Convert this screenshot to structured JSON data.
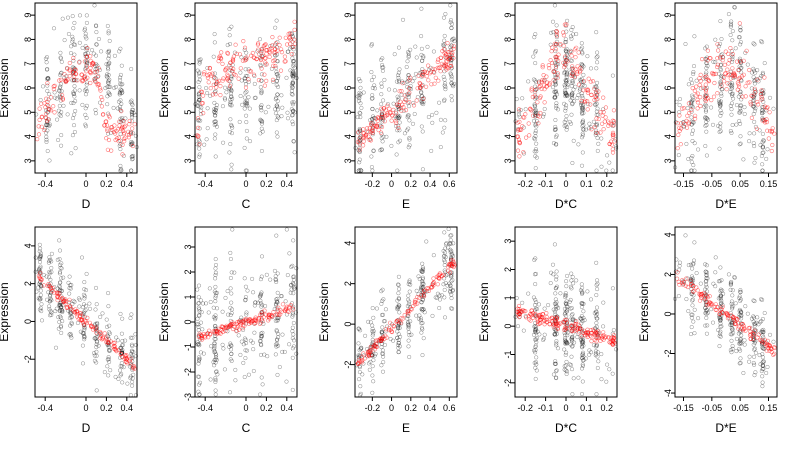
{
  "chart_data": [
    {
      "type": "scatter",
      "xlabel": "D",
      "ylabel": "Expression",
      "xlim": [
        -0.5,
        0.5
      ],
      "ylim": [
        2.5,
        9.5
      ],
      "xticks": [
        -0.4,
        0,
        0.2,
        0.4
      ],
      "yticks": [
        3,
        4,
        5,
        6,
        7,
        8,
        9
      ],
      "grey_fn": {
        "kind": "peak",
        "pts": [
          [
            -0.5,
            4.6
          ],
          [
            -0.2,
            6.3
          ],
          [
            0.1,
            7.2
          ],
          [
            0.5,
            3.8
          ]
        ],
        "sd": 1.2,
        "clusters": [
          -0.38,
          -0.25,
          -0.12,
          0.0,
          0.1,
          0.22,
          0.34,
          0.45
        ],
        "n": 300
      },
      "red_fn": {
        "kind": "peak",
        "pts": [
          [
            -0.5,
            4.4
          ],
          [
            -0.2,
            6.2
          ],
          [
            0.1,
            7.0
          ],
          [
            0.2,
            4.3
          ],
          [
            0.5,
            4.1
          ]
        ],
        "sd": 0.35,
        "n": 150
      }
    },
    {
      "type": "scatter",
      "xlabel": "C",
      "ylabel": "Expression",
      "xlim": [
        -0.5,
        0.5
      ],
      "ylim": [
        2.5,
        9.5
      ],
      "xticks": [
        -0.4,
        0,
        0.2,
        0.4
      ],
      "yticks": [
        3,
        4,
        5,
        6,
        7,
        8,
        9
      ],
      "grey_fn": {
        "kind": "linear",
        "a": 5.7,
        "b": 1.0,
        "sd": 1.3,
        "clusters": [
          -0.46,
          -0.3,
          -0.15,
          0.0,
          0.15,
          0.3,
          0.46
        ],
        "n": 300
      },
      "red_fn": {
        "kind": "peak",
        "pts": [
          [
            -0.48,
            4.0
          ],
          [
            -0.4,
            6.3
          ],
          [
            0.5,
            7.8
          ]
        ],
        "sd": 0.45,
        "n": 150
      }
    },
    {
      "type": "scatter",
      "xlabel": "E",
      "ylabel": "Expression",
      "xlim": [
        -0.38,
        0.68
      ],
      "ylim": [
        2.5,
        9.5
      ],
      "xticks": [
        -0.2,
        0,
        0.2,
        0.4,
        0.6
      ],
      "yticks": [
        3,
        4,
        5,
        6,
        7,
        8,
        9
      ],
      "grey_fn": {
        "kind": "linear",
        "a": 5.2,
        "b": 2.6,
        "sd": 1.2,
        "clusters": [
          -0.33,
          -0.2,
          -0.1,
          0.07,
          0.18,
          0.32,
          0.55,
          0.62
        ],
        "n": 300
      },
      "red_fn": {
        "kind": "linear",
        "a": 5.0,
        "b": 3.6,
        "sd": 0.3,
        "n": 150
      }
    },
    {
      "type": "scatter",
      "xlabel": "D*C",
      "ylabel": "Expression",
      "xlim": [
        -0.25,
        0.25
      ],
      "ylim": [
        2.5,
        9.5
      ],
      "xticks": [
        -0.2,
        -0.1,
        0,
        0.1,
        0.2
      ],
      "yticks": [
        3,
        4,
        5,
        6,
        7,
        8,
        9
      ],
      "grey_fn": {
        "kind": "peak",
        "pts": [
          [
            -0.25,
            4.5
          ],
          [
            0.0,
            6.5
          ],
          [
            0.25,
            4.3
          ]
        ],
        "sd": 1.3,
        "clusters": [
          -0.15,
          -0.05,
          0.0,
          0.03,
          0.08,
          0.15
        ],
        "n": 320
      },
      "red_fn": {
        "kind": "peak",
        "pts": [
          [
            -0.22,
            4.1
          ],
          [
            -0.02,
            7.8
          ],
          [
            0.22,
            4.1
          ]
        ],
        "sd": 0.5,
        "n": 170
      }
    },
    {
      "type": "scatter",
      "xlabel": "D*E",
      "ylabel": "Expression",
      "xlim": [
        -0.18,
        0.18
      ],
      "ylim": [
        2.5,
        9.5
      ],
      "xticks": [
        -0.15,
        -0.05,
        0.05,
        0.15
      ],
      "yticks": [
        3,
        4,
        5,
        6,
        7,
        8,
        9
      ],
      "grey_fn": {
        "kind": "peak",
        "pts": [
          [
            -0.18,
            4.3
          ],
          [
            0.03,
            6.5
          ],
          [
            0.18,
            4.4
          ]
        ],
        "sd": 1.3,
        "clusters": [
          -0.12,
          -0.07,
          -0.02,
          0.02,
          0.05,
          0.1,
          0.13
        ],
        "n": 300
      },
      "red_fn": {
        "kind": "peak",
        "pts": [
          [
            -0.18,
            4.1
          ],
          [
            0.0,
            7.2
          ],
          [
            0.18,
            4.2
          ]
        ],
        "sd": 0.6,
        "n": 150
      }
    },
    {
      "type": "scatter",
      "xlabel": "D",
      "ylabel": "Expression",
      "xlim": [
        -0.5,
        0.5
      ],
      "ylim": [
        -4,
        5
      ],
      "xticks": [
        -0.4,
        0,
        0.2,
        0.4
      ],
      "yticks": [
        -2,
        0,
        2,
        4
      ],
      "grey_fn": {
        "kind": "linear",
        "a": 0,
        "b": -5.0,
        "sd": 1.0,
        "clusters": [
          -0.45,
          -0.35,
          -0.25,
          -0.15,
          -0.02,
          0.1,
          0.22,
          0.35,
          0.45
        ],
        "n": 320
      },
      "red_fn": {
        "kind": "linear",
        "a": 0,
        "b": -5.0,
        "sd": 0.12,
        "n": 120
      }
    },
    {
      "type": "scatter",
      "xlabel": "C",
      "ylabel": "Expression",
      "xlim": [
        -0.5,
        0.5
      ],
      "ylim": [
        -3,
        3.8
      ],
      "xticks": [
        -0.4,
        0,
        0.2,
        0.4
      ],
      "yticks": [
        -3,
        -2,
        -1,
        0,
        1,
        2,
        3
      ],
      "grey_fn": {
        "kind": "linear",
        "a": 0,
        "b": 1.3,
        "sd": 1.2,
        "clusters": [
          -0.46,
          -0.3,
          -0.15,
          0.0,
          0.15,
          0.3,
          0.46
        ],
        "n": 300
      },
      "red_fn": {
        "kind": "linear",
        "a": 0,
        "b": 1.3,
        "sd": 0.1,
        "n": 130
      }
    },
    {
      "type": "scatter",
      "xlabel": "E",
      "ylabel": "Expression",
      "xlim": [
        -0.38,
        0.68
      ],
      "ylim": [
        -3.6,
        4.8
      ],
      "xticks": [
        -0.2,
        0,
        0.2,
        0.4,
        0.6
      ],
      "yticks": [
        -2,
        0,
        2,
        4
      ],
      "grey_fn": {
        "kind": "linear",
        "a": -0.2,
        "b": 5.0,
        "sd": 1.0,
        "clusters": [
          -0.33,
          -0.2,
          -0.1,
          0.07,
          0.18,
          0.32,
          0.55,
          0.62
        ],
        "n": 300
      },
      "red_fn": {
        "kind": "linear",
        "a": -0.2,
        "b": 5.0,
        "sd": 0.12,
        "n": 120
      }
    },
    {
      "type": "scatter",
      "xlabel": "D*C",
      "ylabel": "Expression",
      "xlim": [
        -0.25,
        0.25
      ],
      "ylim": [
        -2.5,
        3.5
      ],
      "xticks": [
        -0.2,
        -0.1,
        0,
        0.1,
        0.2
      ],
      "yticks": [
        -2,
        -1,
        0,
        1,
        2,
        3
      ],
      "grey_fn": {
        "kind": "linear",
        "a": 0,
        "b": -1.0,
        "sd": 1.0,
        "clusters": [
          -0.15,
          -0.05,
          0.0,
          0.03,
          0.08,
          0.15
        ],
        "n": 320
      },
      "red_fn": {
        "kind": "linear",
        "a": 0,
        "b": -2.2,
        "sd": 0.1,
        "n": 170
      }
    },
    {
      "type": "scatter",
      "xlabel": "D*E",
      "ylabel": "Expression",
      "xlim": [
        -0.18,
        0.18
      ],
      "ylim": [
        -4.2,
        4.4
      ],
      "xticks": [
        -0.15,
        -0.05,
        0.05,
        0.15
      ],
      "yticks": [
        -4,
        -2,
        0,
        2,
        4
      ],
      "grey_fn": {
        "kind": "linear",
        "a": 0,
        "b": -11,
        "sd": 1.0,
        "clusters": [
          -0.12,
          -0.07,
          -0.02,
          0.02,
          0.05,
          0.1,
          0.13
        ],
        "n": 300
      },
      "red_fn": {
        "kind": "linear",
        "a": 0,
        "b": -11,
        "sd": 0.15,
        "n": 120
      }
    }
  ]
}
